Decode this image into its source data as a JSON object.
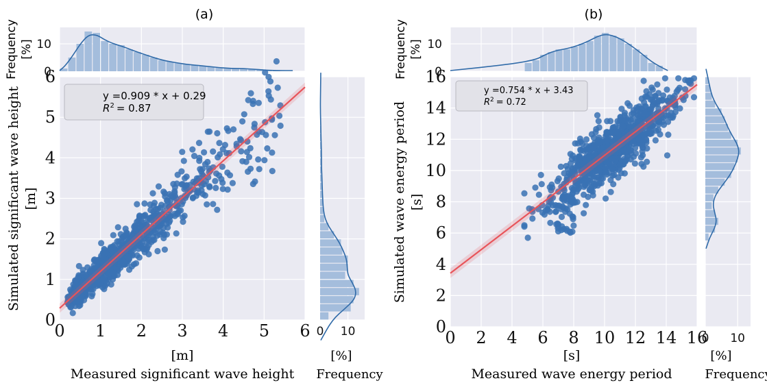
{
  "panel_a": {
    "label": "(a)",
    "equation": "y =0.909 * x + 0.29",
    "r2_prefix": "R",
    "r2_value": "=  0.87",
    "xlabel_unit": "[m]",
    "xlabel": "Measured significant wave height",
    "ylabel_unit": "[m]",
    "ylabel": "Simulated significant wave height",
    "top_hist_label": "Frequency",
    "top_hist_unit": "[%]",
    "right_hist_unit": "[%]",
    "right_hist_label": "Frequency"
  },
  "panel_b": {
    "label": "(b)",
    "equation": "y =0.754 * x + 3.43",
    "r2_prefix": "R",
    "r2_value": "=  0.72",
    "xlabel_unit": "[s]",
    "xlabel": "Measured wave energy period",
    "ylabel_unit": "[s]",
    "ylabel": "Simulated wave energy period",
    "top_hist_label": "Frequency",
    "top_hist_unit": "[%]",
    "right_hist_unit": "[%]",
    "right_hist_label": "Frequency"
  },
  "colors": {
    "panel_bg": "#eaeaf2",
    "grid": "#ffffff",
    "point": "#3a72b4",
    "fit_line": "#e8545a",
    "hist_bar": "#a4bddc",
    "kde": "#2f6aa8",
    "textbox_bg": "#e2e2e8"
  },
  "chart_data": [
    {
      "type": "scatter",
      "panel": "a",
      "xlim": [
        0,
        6
      ],
      "ylim": [
        0,
        6
      ],
      "xticks": [
        0,
        1,
        2,
        3,
        4,
        5,
        6
      ],
      "yticks": [
        0,
        1,
        2,
        3,
        4,
        5,
        6
      ],
      "fit": {
        "slope": 0.909,
        "intercept": 0.29,
        "r2": 0.87
      },
      "grid": true,
      "points_description_generation": {
        "n": 900,
        "seed": 11,
        "xrange": [
          0.2,
          5.4
        ],
        "noise": 0.32
      },
      "top_hist": {
        "yticks": [
          0,
          10
        ],
        "ylim": [
          0,
          16
        ],
        "bin_edges_start": 0,
        "bin_width": 0.2,
        "values": [
          1,
          5,
          10,
          14.5,
          14,
          11,
          10,
          9.5,
          8,
          7,
          6,
          5,
          4,
          3.5,
          3,
          2.5,
          2.2,
          2,
          1.6,
          1.4,
          1,
          1,
          1,
          0.8,
          0.6,
          0.3,
          0.2
        ]
      },
      "right_hist": {
        "xticks": [
          0,
          10
        ],
        "xlim": [
          0,
          16
        ],
        "bin_edges_start": 0,
        "bin_width": 0.2,
        "values": [
          3,
          11,
          12,
          14,
          12,
          9,
          10,
          10,
          8,
          7.5,
          5,
          3,
          1.5,
          1.2,
          1,
          0.8,
          0.8,
          0.7,
          0.5,
          0.5,
          0.5,
          0.4,
          0.3,
          0.3,
          0.2,
          0.1,
          0.1,
          0.1
        ]
      }
    },
    {
      "type": "scatter",
      "panel": "b",
      "xlim": [
        0,
        16
      ],
      "ylim": [
        0,
        16
      ],
      "xticks": [
        0,
        2,
        4,
        6,
        8,
        10,
        12,
        14,
        16
      ],
      "yticks": [
        0,
        2,
        4,
        6,
        8,
        10,
        12,
        14,
        16
      ],
      "fit": {
        "slope": 0.754,
        "intercept": 3.43,
        "r2": 0.72
      },
      "grid": true,
      "top_hist": {
        "yticks": [
          0,
          10
        ],
        "ylim": [
          0,
          16
        ],
        "bin_edges_start": 4.8,
        "bin_width": 0.5,
        "values": [
          3,
          4,
          6,
          7,
          8,
          8,
          9,
          10,
          11,
          13,
          14,
          13,
          12,
          10,
          8,
          6,
          3,
          2
        ]
      },
      "right_hist": {
        "xticks": [
          0,
          10
        ],
        "xlim": [
          0,
          14
        ],
        "bin_edges_start": 5.5,
        "bin_width": 0.5,
        "values": [
          1,
          3,
          4,
          3,
          2,
          2.5,
          4,
          6,
          8,
          9,
          10,
          11,
          10,
          8,
          7,
          6,
          5,
          3,
          2,
          1.5,
          1
        ]
      }
    }
  ]
}
